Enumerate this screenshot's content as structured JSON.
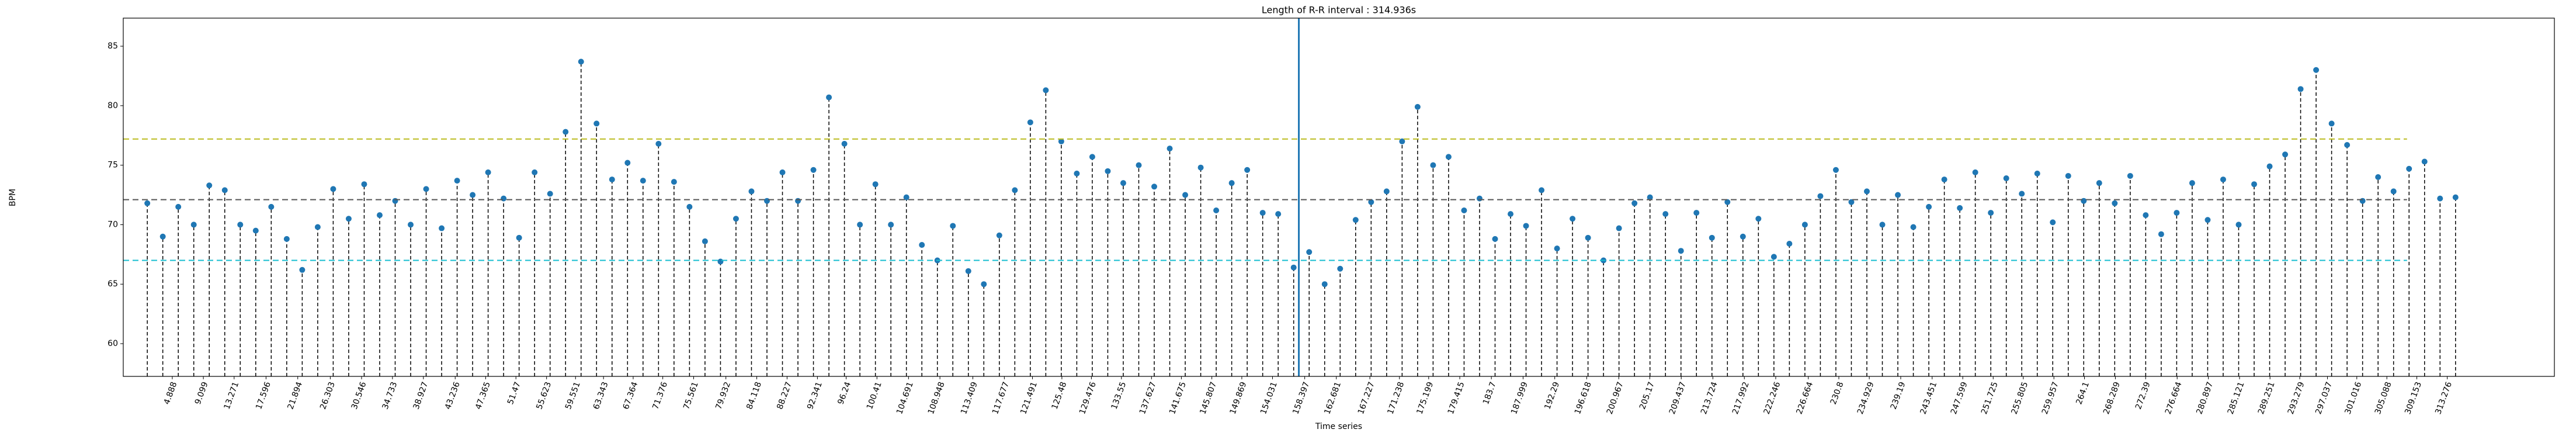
{
  "chart_data": {
    "type": "stem",
    "title": "Length of R-R interval : 314.936s",
    "x_label": "Time series",
    "y_label": "BPM",
    "color": "#1f77b4",
    "x": [
      1.5,
      3.6,
      5.7,
      7.8,
      9.9,
      12.0,
      14.1,
      16.2,
      18.3,
      20.4,
      22.5,
      24.6,
      26.7,
      28.8,
      30.9,
      33.0,
      35.1,
      37.2,
      39.3,
      41.4,
      43.5,
      45.6,
      47.7,
      49.8,
      51.9,
      54.0,
      56.1,
      58.2,
      60.3,
      62.4,
      64.5,
      66.6,
      68.7,
      70.8,
      72.9,
      75.0,
      77.1,
      79.2,
      81.3,
      83.4,
      85.5,
      87.6,
      89.7,
      91.8,
      93.9,
      96.0,
      98.1,
      100.2,
      102.3,
      104.4,
      106.5,
      108.6,
      110.7,
      112.8,
      114.9,
      117.0,
      119.1,
      121.2,
      123.3,
      125.4,
      127.5,
      129.6,
      131.7,
      133.8,
      135.9,
      138.0,
      140.1,
      142.2,
      144.3,
      146.4,
      148.5,
      150.6,
      152.7,
      154.8,
      156.9,
      159.0,
      161.1,
      163.2,
      165.3,
      167.4,
      169.5,
      171.6,
      173.7,
      175.8,
      177.9,
      180.0,
      182.1,
      184.2,
      186.3,
      188.4,
      190.5,
      192.6,
      194.7,
      196.8,
      198.9,
      201.0,
      203.1,
      205.2,
      207.3,
      209.4,
      211.5,
      213.6,
      215.7,
      217.8,
      219.9,
      222.0,
      224.1,
      226.2,
      228.3,
      230.4,
      232.5,
      234.6,
      236.7,
      238.8,
      240.9,
      243.0,
      245.1,
      247.2,
      249.3,
      251.4,
      253.5,
      255.6,
      257.7,
      259.8,
      261.9,
      264.0,
      266.1,
      268.2,
      270.3,
      272.4,
      274.5,
      276.6,
      278.7,
      280.8,
      282.9,
      285.0,
      287.1,
      289.2,
      291.3,
      293.4,
      295.5,
      297.6,
      299.7,
      301.8,
      303.9,
      306.0,
      308.1,
      310.2,
      312.3,
      314.4
    ],
    "values": [
      71.8,
      69.0,
      71.5,
      70.0,
      73.3,
      72.9,
      70.0,
      69.5,
      71.5,
      68.8,
      66.2,
      69.8,
      73.0,
      70.5,
      73.4,
      70.8,
      72.0,
      70.0,
      73.0,
      69.7,
      73.7,
      72.5,
      74.4,
      72.2,
      68.9,
      74.4,
      72.6,
      77.8,
      83.7,
      78.5,
      73.8,
      75.2,
      73.7,
      76.8,
      73.6,
      71.5,
      68.6,
      66.9,
      70.5,
      72.8,
      72.0,
      74.4,
      72.0,
      74.6,
      80.7,
      76.8,
      70.0,
      73.4,
      70.0,
      72.3,
      68.3,
      67.0,
      69.9,
      66.1,
      65.0,
      69.1,
      72.9,
      78.6,
      81.3,
      77.0,
      74.3,
      75.7,
      74.5,
      73.5,
      75.0,
      73.2,
      76.4,
      72.5,
      74.8,
      71.2,
      73.5,
      74.6,
      71.0,
      70.9,
      66.4,
      67.7,
      65.0,
      66.3,
      70.4,
      71.9,
      72.8,
      77.0,
      79.9,
      75.0,
      75.7,
      71.2,
      72.2,
      68.8,
      70.9,
      69.9,
      72.9,
      68.0,
      70.5,
      68.9,
      67.0,
      69.7,
      71.8,
      72.3,
      70.9,
      67.8,
      71.0,
      68.9,
      71.9,
      69.0,
      70.5,
      67.3,
      68.4,
      70.0,
      72.4,
      74.6,
      71.9,
      72.8,
      70.0,
      72.5,
      69.8,
      71.5,
      73.8,
      71.4,
      74.4,
      71.0,
      73.9,
      72.6,
      74.3,
      70.2,
      74.1,
      72.0,
      73.5,
      71.8,
      74.1,
      70.8,
      69.2,
      71.0,
      73.5,
      70.4,
      73.8,
      70.0,
      73.4,
      74.9,
      75.9,
      81.4,
      83.0,
      78.5,
      76.7,
      72.0,
      74.0,
      72.8,
      74.7,
      75.3,
      72.2,
      72.3
    ],
    "xlim": [
      -1.76,
      327.8
    ],
    "ylim": [
      57.25,
      87.36
    ],
    "xticks": [
      4.888,
      9.099,
      13.271,
      17.596,
      21.894,
      26.303,
      30.546,
      34.733,
      38.927,
      43.236,
      47.365,
      51.47,
      55.623,
      59.551,
      63.343,
      67.364,
      71.376,
      75.561,
      79.932,
      84.118,
      88.227,
      92.341,
      96.24,
      100.41,
      104.691,
      108.948,
      113.409,
      117.677,
      121.491,
      125.48,
      129.476,
      133.55,
      137.627,
      141.675,
      145.807,
      149.869,
      154.031,
      158.397,
      162.681,
      167.227,
      171.238,
      175.199,
      179.415,
      183.7,
      187.999,
      192.29,
      196.618,
      200.967,
      205.17,
      209.437,
      213.724,
      217.992,
      222.246,
      226.664,
      230.8,
      234.929,
      239.19,
      243.451,
      247.599,
      251.725,
      255.805,
      259.957,
      264.1,
      268.289,
      272.39,
      276.664,
      280.897,
      285.121,
      289.251,
      293.279,
      297.037,
      301.016,
      305.088,
      309.153,
      313.276
    ],
    "yticks": [
      60,
      65,
      70,
      75,
      80,
      85
    ],
    "hlines": [
      {
        "value": 72.1,
        "color": "#555555"
      },
      {
        "value": 77.2,
        "color": "#bcbd22"
      },
      {
        "value": 67.0,
        "color": "#17becf"
      }
    ],
    "vline": {
      "value": 157.6,
      "color": "#1f77b4"
    }
  }
}
